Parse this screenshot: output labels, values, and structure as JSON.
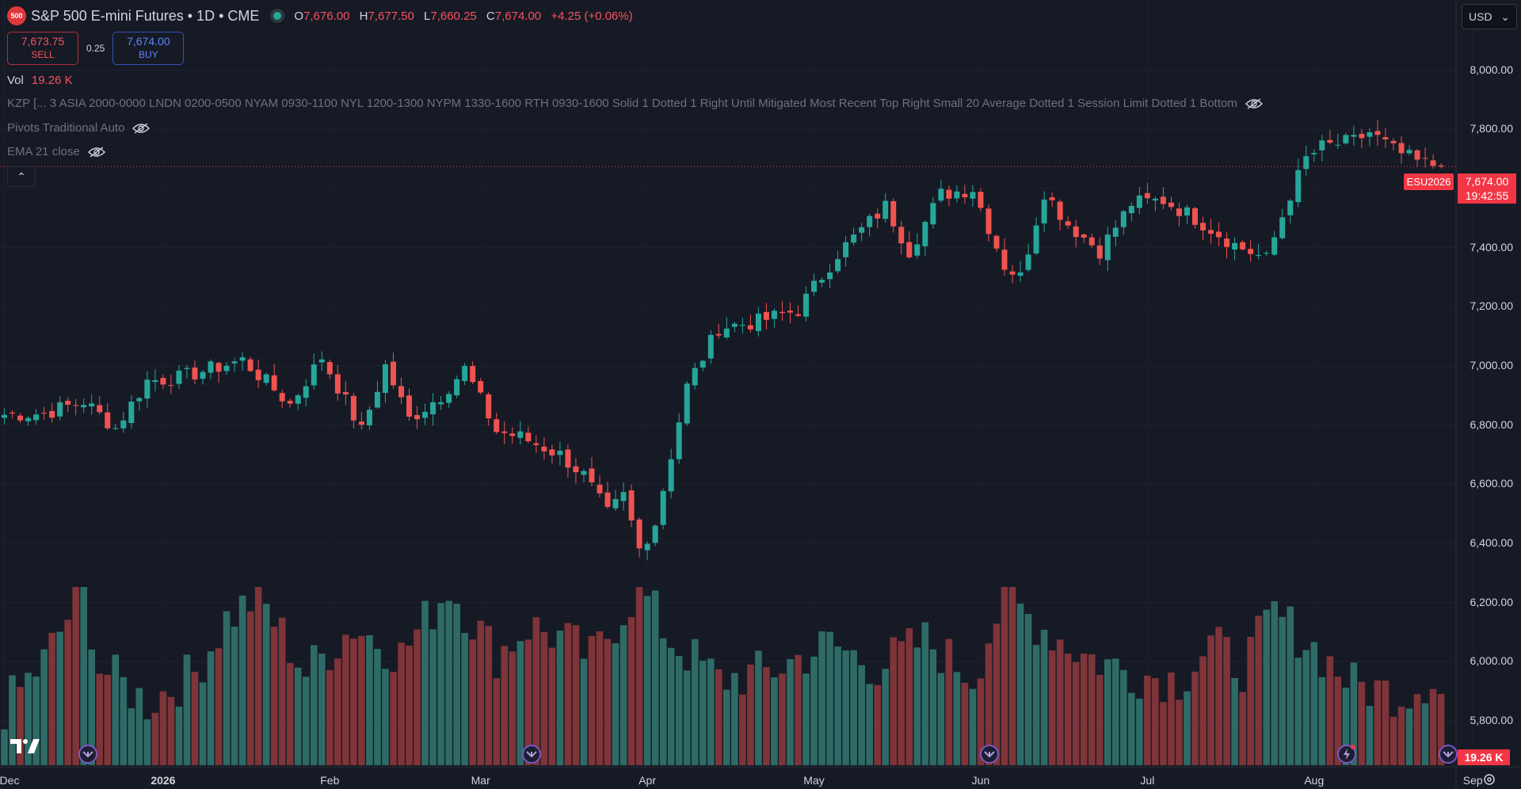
{
  "header": {
    "symbol_badge": "500",
    "title": "S&P 500 E-mini Futures • 1D • CME",
    "ohlc": {
      "o_label": "O",
      "o": "7,676.00",
      "h_label": "H",
      "h": "7,677.50",
      "l_label": "L",
      "l": "7,660.25",
      "c_label": "C",
      "c": "7,674.00",
      "change": "+4.25 (+0.06%)"
    },
    "market_status": "market-open-dot"
  },
  "trade": {
    "sell_price": "7,673.75",
    "sell_label": "SELL",
    "spread": "0.25",
    "buy_price": "7,674.00",
    "buy_label": "BUY"
  },
  "volume_legend": {
    "label": "Vol",
    "value": "19.26 K"
  },
  "indicators": [
    {
      "text": "KZP [... 3 ASIA 2000-0000 LNDN 0200-0500 NYAM 0930-1100 NYL 1200-1300 NYPM 1330-1600 RTH 0930-1600 Solid 1 Dotted 1 Right Until Mitigated Most Recent Top Right Small 20 Average Dotted 1 Session Limit Dotted 1 Bottom"
    },
    {
      "text": "Pivots Traditional Auto"
    },
    {
      "text": "EMA 21 close"
    }
  ],
  "currency": "USD",
  "price_labels": {
    "symbol": "ESU2026",
    "last": "7,674.00",
    "countdown": "19:42:55",
    "volume": "19.26 K"
  },
  "colors": {
    "up": "#26a69a",
    "down": "#ef5350",
    "up_vol": "#2e6b66",
    "down_vol": "#7e3438",
    "background": "#161a25",
    "last_price": "#f23645"
  },
  "chart_data": {
    "type": "candlestick",
    "timeframe": "1D",
    "ylim": [
      5650,
      8130
    ],
    "y_ticks": [
      "8,000.00",
      "7,800.00",
      "7,600.00",
      "7,400.00",
      "7,200.00",
      "7,000.00",
      "6,800.00",
      "6,600.00",
      "6,400.00",
      "6,200.00",
      "6,000.00",
      "5,800.00"
    ],
    "x_ticks": [
      {
        "label": "Dec",
        "idx": 0
      },
      {
        "label": "2026",
        "idx": 20,
        "bold": true
      },
      {
        "label": "Feb",
        "idx": 41
      },
      {
        "label": "Mar",
        "idx": 60
      },
      {
        "label": "Apr",
        "idx": 81
      },
      {
        "label": "May",
        "idx": 102
      },
      {
        "label": "Jun",
        "idx": 123
      },
      {
        "label": "Jul",
        "idx": 144
      },
      {
        "label": "Aug",
        "idx": 165
      },
      {
        "label": "Sep",
        "idx": 185
      }
    ],
    "bars_count": 182,
    "anchors": [
      [
        0,
        6835
      ],
      [
        5,
        6840
      ],
      [
        10,
        6880
      ],
      [
        14,
        6790
      ],
      [
        18,
        6950
      ],
      [
        22,
        6960
      ],
      [
        26,
        6990
      ],
      [
        30,
        7020
      ],
      [
        36,
        6870
      ],
      [
        40,
        7030
      ],
      [
        45,
        6780
      ],
      [
        48,
        7000
      ],
      [
        51,
        6820
      ],
      [
        55,
        6900
      ],
      [
        58,
        6990
      ],
      [
        62,
        6780
      ],
      [
        65,
        6760
      ],
      [
        70,
        6700
      ],
      [
        73,
        6630
      ],
      [
        76,
        6500
      ],
      [
        78,
        6560
      ],
      [
        80,
        6380
      ],
      [
        82,
        6470
      ],
      [
        86,
        6930
      ],
      [
        90,
        7130
      ],
      [
        95,
        7150
      ],
      [
        100,
        7190
      ],
      [
        105,
        7380
      ],
      [
        111,
        7540
      ],
      [
        114,
        7390
      ],
      [
        118,
        7580
      ],
      [
        122,
        7600
      ],
      [
        126,
        7340
      ],
      [
        128,
        7300
      ],
      [
        131,
        7590
      ],
      [
        134,
        7480
      ],
      [
        138,
        7390
      ],
      [
        142,
        7550
      ],
      [
        146,
        7560
      ],
      [
        150,
        7500
      ],
      [
        155,
        7410
      ],
      [
        159,
        7360
      ],
      [
        162,
        7580
      ],
      [
        164,
        7700
      ],
      [
        166,
        7740
      ],
      [
        170,
        7760
      ],
      [
        172,
        7790
      ],
      [
        175,
        7730
      ],
      [
        178,
        7690
      ],
      [
        181,
        7674
      ]
    ],
    "volume_anchors": [
      [
        0,
        32
      ],
      [
        5,
        58
      ],
      [
        10,
        100
      ],
      [
        12,
        55
      ],
      [
        18,
        35
      ],
      [
        24,
        52
      ],
      [
        28,
        82
      ],
      [
        32,
        95
      ],
      [
        38,
        52
      ],
      [
        44,
        78
      ],
      [
        50,
        62
      ],
      [
        56,
        100
      ],
      [
        62,
        62
      ],
      [
        66,
        78
      ],
      [
        70,
        72
      ],
      [
        74,
        60
      ],
      [
        80,
        100
      ],
      [
        84,
        70
      ],
      [
        90,
        48
      ],
      [
        96,
        52
      ],
      [
        104,
        68
      ],
      [
        110,
        55
      ],
      [
        116,
        70
      ],
      [
        122,
        50
      ],
      [
        126,
        95
      ],
      [
        130,
        80
      ],
      [
        136,
        62
      ],
      [
        142,
        52
      ],
      [
        148,
        48
      ],
      [
        152,
        68
      ],
      [
        156,
        55
      ],
      [
        160,
        85
      ],
      [
        164,
        70
      ],
      [
        170,
        45
      ],
      [
        176,
        40
      ],
      [
        181,
        52
      ]
    ],
    "last_volume": "19.26 K"
  }
}
